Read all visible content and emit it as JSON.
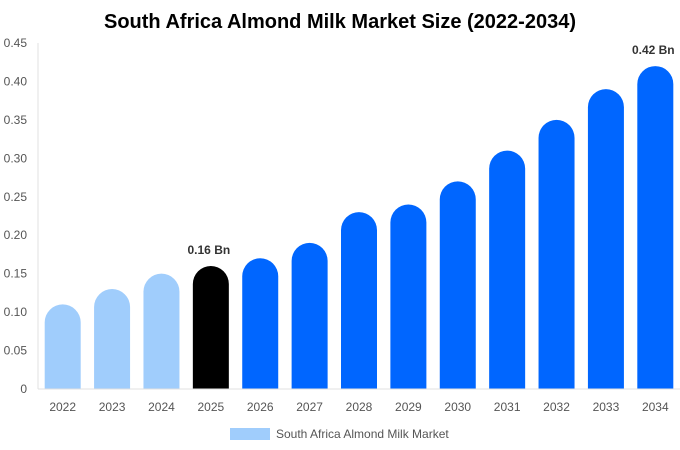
{
  "chart_data": {
    "type": "bar",
    "title": "South Africa Almond Milk Market Size (2022-2034)",
    "xlabel": "",
    "ylabel": "",
    "ylim": [
      0,
      0.45
    ],
    "yticks": [
      "0",
      "0.05",
      "0.10",
      "0.15",
      "0.20",
      "0.25",
      "0.30",
      "0.35",
      "0.40",
      "0.45"
    ],
    "grid": false,
    "legend_position": "bottom",
    "categories": [
      "2022",
      "2023",
      "2024",
      "2025",
      "2026",
      "2027",
      "2028",
      "2029",
      "2030",
      "2031",
      "2032",
      "2033",
      "2034"
    ],
    "series": [
      {
        "name": "South Africa Almond Milk Market",
        "values": [
          0.11,
          0.13,
          0.15,
          0.16,
          0.17,
          0.19,
          0.23,
          0.24,
          0.27,
          0.31,
          0.35,
          0.39,
          0.42
        ]
      }
    ],
    "bar_colors": {
      "historical": "#a0cdfc",
      "base_year": "#000000",
      "forecast": "#0066ff"
    },
    "base_year": "2025",
    "data_labels": [
      {
        "category": "2025",
        "text": "0.16 Bn"
      },
      {
        "category": "2034",
        "text": "0.42 Bn"
      }
    ]
  }
}
